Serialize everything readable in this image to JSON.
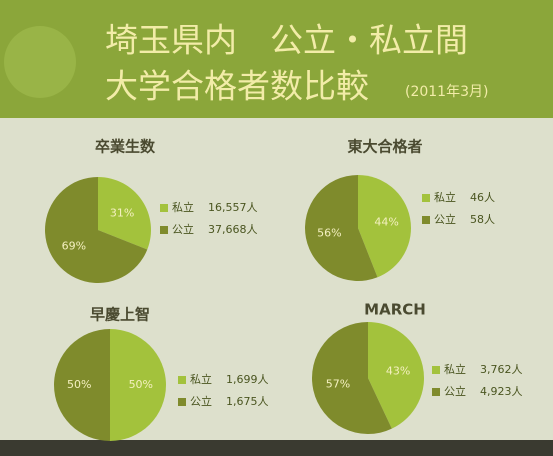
{
  "header": {
    "line1": "埼玉県内　公立・私立間",
    "line2": "大学合格者数比較",
    "date": "(2011年3月)"
  },
  "chart_data": [
    {
      "type": "pie",
      "title": "卒業生数",
      "categories": [
        "私立",
        "公立"
      ],
      "values": [
        31,
        69
      ],
      "value_labels": [
        "31%",
        "69%"
      ],
      "counts": [
        "16,557人",
        "37,668人"
      ],
      "colors": [
        "#a3c23c",
        "#7f8b2c"
      ]
    },
    {
      "type": "pie",
      "title": "東大合格者",
      "categories": [
        "私立",
        "公立"
      ],
      "values": [
        44,
        56
      ],
      "value_labels": [
        "44%",
        "56%"
      ],
      "counts": [
        "46人",
        "58人"
      ],
      "colors": [
        "#a3c23c",
        "#7f8b2c"
      ]
    },
    {
      "type": "pie",
      "title": "早慶上智",
      "categories": [
        "私立",
        "公立"
      ],
      "values": [
        50,
        50
      ],
      "value_labels": [
        "50%",
        "50%"
      ],
      "counts": [
        "1,699人",
        "1,675人"
      ],
      "colors": [
        "#a3c23c",
        "#7f8b2c"
      ]
    },
    {
      "type": "pie",
      "title": "MARCH",
      "categories": [
        "私立",
        "公立"
      ],
      "values": [
        43,
        57
      ],
      "value_labels": [
        "43%",
        "57%"
      ],
      "counts": [
        "3,762人",
        "4,923人"
      ],
      "colors": [
        "#a3c23c",
        "#7f8b2c"
      ]
    }
  ]
}
